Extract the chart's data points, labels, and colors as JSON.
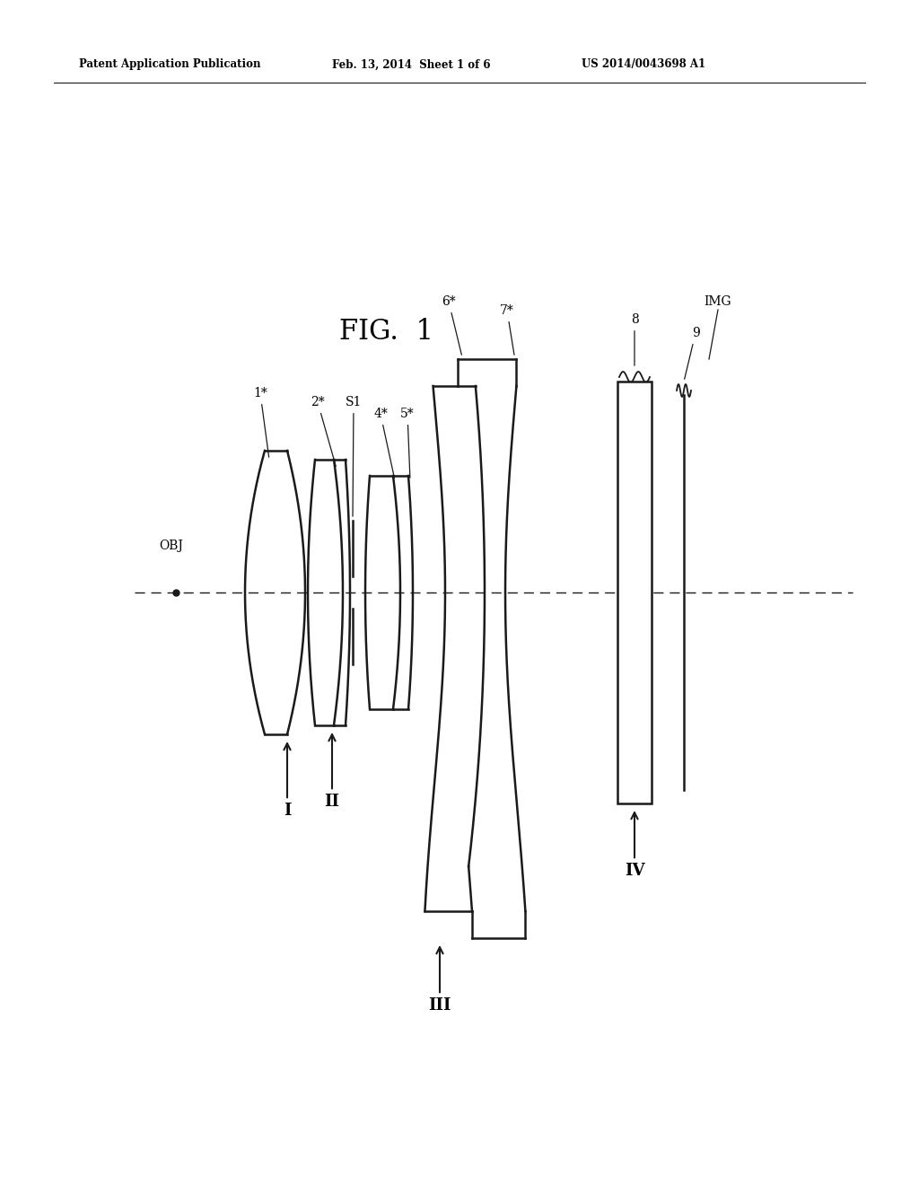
{
  "title": "FIG.  1",
  "header_left": "Patent Application Publication",
  "header_mid": "Feb. 13, 2014  Sheet 1 of 6",
  "header_right": "US 2014/0043698 A1",
  "bg_color": "#ffffff",
  "line_color": "#1a1a1a",
  "figsize": [
    10.24,
    13.2
  ],
  "dpi": 100
}
